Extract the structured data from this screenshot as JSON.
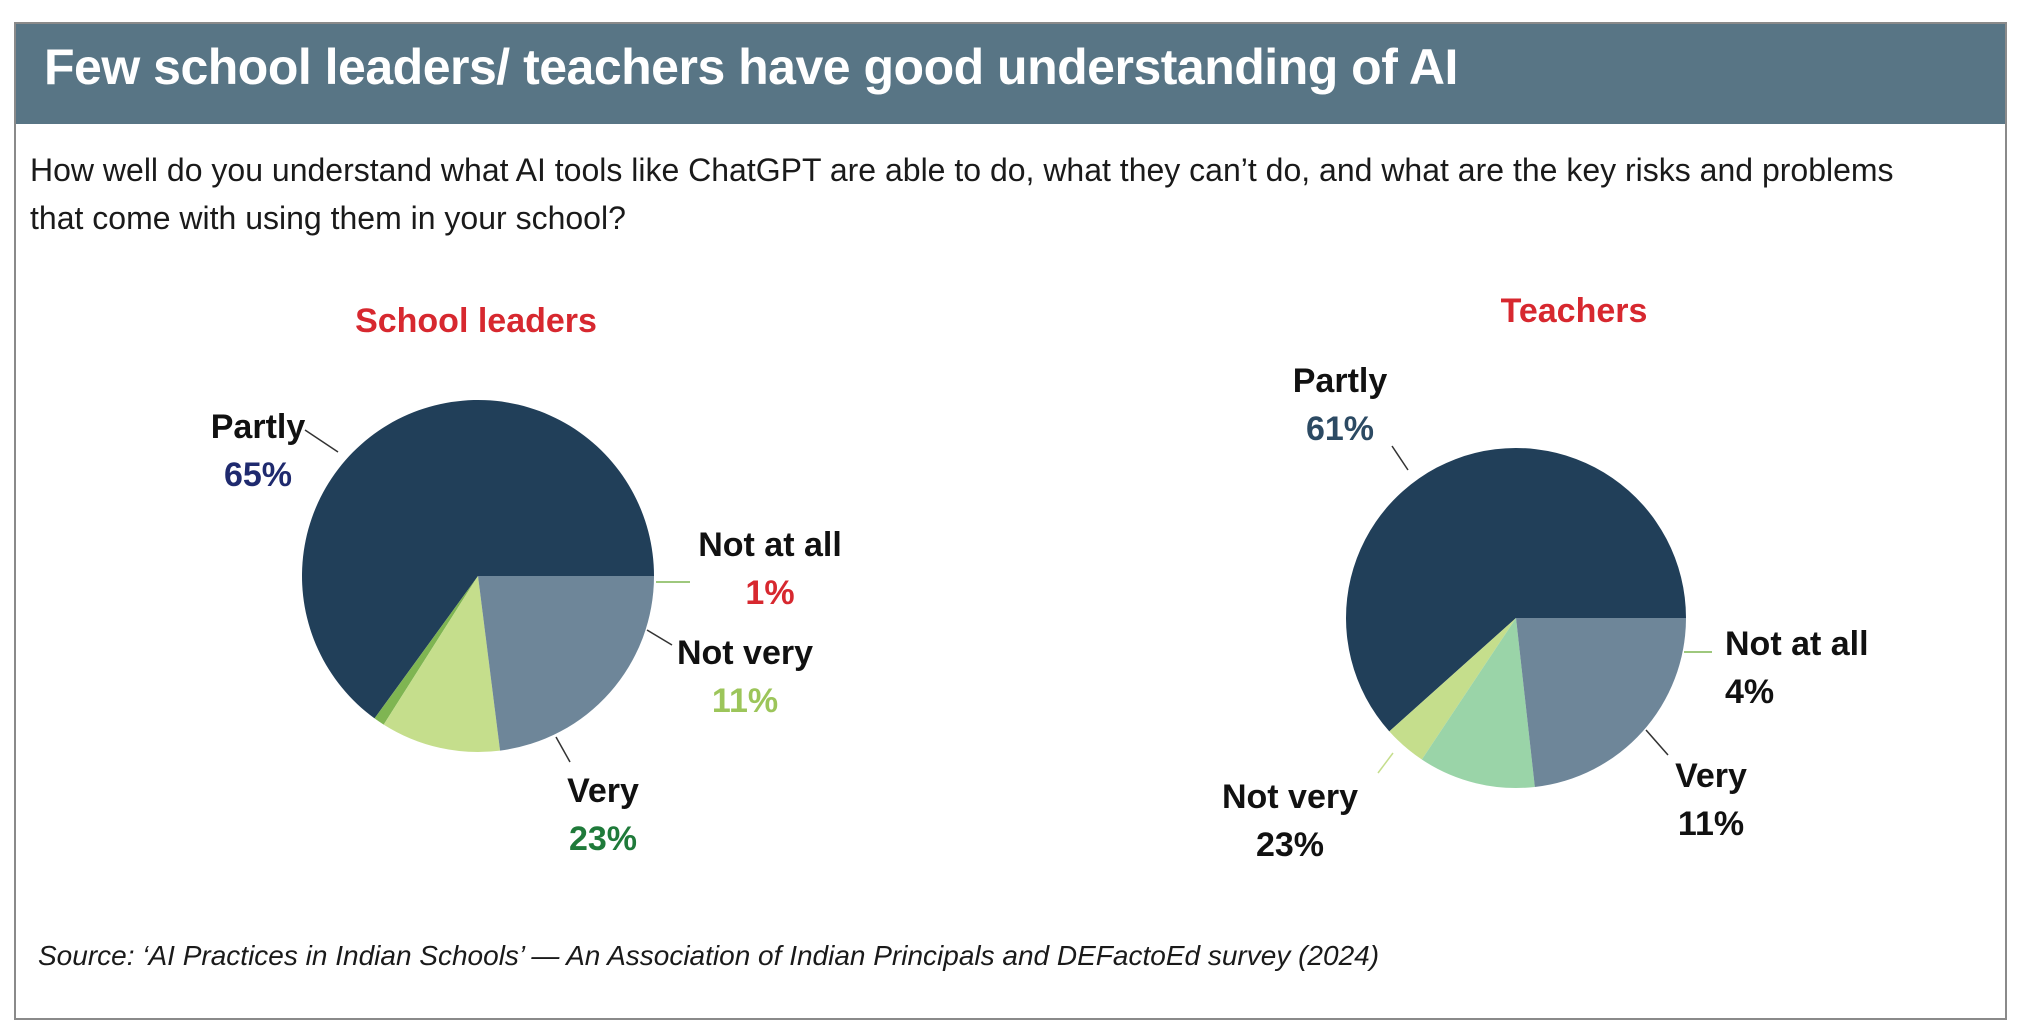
{
  "header": {
    "title": "Few school leaders/ teachers have good understanding of AI"
  },
  "question": "How well do you understand what AI tools like ChatGPT are able to do, what they can’t do, and what are the key risks and problems that come with using them in your school?",
  "source": "Source: ‘AI Practices in Indian Schools’ —  An Association of Indian Principals and DEFactoEd survey (2024)",
  "colors": {
    "header_bg": "#587585",
    "subtitle_red": "#d7282f",
    "partly": "#213f59",
    "very": "#6e8699",
    "not_very": "#c5de8c",
    "not_at_all_leaders": "#7fb552",
    "very_teachers": "#9ad4a8",
    "not_very_teachers": "#6e8699",
    "not_at_all_teachers": "#c5de8c"
  },
  "chart_data": [
    {
      "type": "pie",
      "title": "School leaders",
      "slices": [
        {
          "label": "Partly",
          "value_text": "65%",
          "value": 65,
          "color": "#213f59",
          "value_color": "#1f2a6e"
        },
        {
          "label": "Not at all",
          "value_text": "1%",
          "value": 1,
          "color": "#7fb552",
          "value_color": "#d7282f"
        },
        {
          "label": "Not very",
          "value_text": "11%",
          "value": 11,
          "color": "#c5de8c",
          "value_color": "#9cc55a"
        },
        {
          "label": "Very",
          "value_text": "23%",
          "value": 23,
          "color": "#6e8699",
          "value_color": "#1f7a3a"
        }
      ]
    },
    {
      "type": "pie",
      "title": "Teachers",
      "slices": [
        {
          "label": "Partly",
          "value_text": "61%",
          "value": 61,
          "color": "#213f59",
          "value_color": "#2c4a63"
        },
        {
          "label": "Not at all",
          "value_text": "4%",
          "value": 4,
          "color": "#c5de8c",
          "value_color": "#111111"
        },
        {
          "label": "Very",
          "value_text": "11%",
          "value": 11,
          "color": "#9ad4a8",
          "value_color": "#111111"
        },
        {
          "label": "Not very",
          "value_text": "23%",
          "value": 23,
          "color": "#6e8699",
          "value_color": "#111111"
        }
      ]
    }
  ]
}
